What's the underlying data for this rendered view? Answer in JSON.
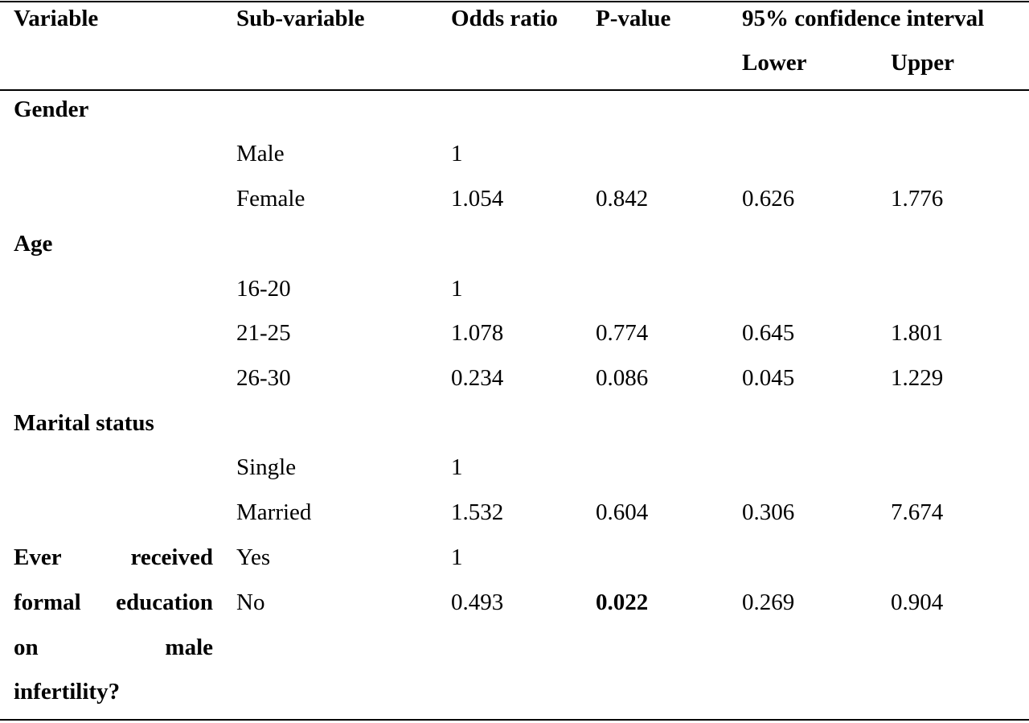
{
  "header": {
    "variable": "Variable",
    "sub_variable": "Sub-variable",
    "odds_ratio": "Odds ratio",
    "p_value": "P-value",
    "ci": "95% confidence interval",
    "lower": "Lower",
    "upper": "Upper"
  },
  "gender": {
    "label": "Gender",
    "rows": [
      {
        "sub": "Male",
        "or": "1",
        "p": "",
        "lower": "",
        "upper": ""
      },
      {
        "sub": "Female",
        "or": "1.054",
        "p": "0.842",
        "lower": "0.626",
        "upper": "1.776"
      }
    ]
  },
  "age": {
    "label": "Age",
    "rows": [
      {
        "sub": "16-20",
        "or": "1",
        "p": "",
        "lower": "",
        "upper": ""
      },
      {
        "sub": "21-25",
        "or": "1.078",
        "p": "0.774",
        "lower": "0.645",
        "upper": "1.801"
      },
      {
        "sub": "26-30",
        "or": "0.234",
        "p": "0.086",
        "lower": "0.045",
        "upper": "1.229"
      }
    ]
  },
  "marital": {
    "label": "Marital status",
    "rows": [
      {
        "sub": "Single",
        "or": "1",
        "p": "",
        "lower": "",
        "upper": ""
      },
      {
        "sub": "Married",
        "or": "1.532",
        "p": "0.604",
        "lower": "0.306",
        "upper": "7.674"
      }
    ]
  },
  "education": {
    "label_words": [
      [
        "Ever",
        "received"
      ],
      [
        "formal",
        "education"
      ],
      [
        "on",
        "male"
      ],
      [
        "infertility?"
      ]
    ],
    "rows": [
      {
        "sub": "Yes",
        "or": "1",
        "p": "",
        "lower": "",
        "upper": ""
      },
      {
        "sub": "No",
        "or": "0.493",
        "p": "0.022",
        "lower": "0.269",
        "upper": "0.904"
      }
    ]
  }
}
